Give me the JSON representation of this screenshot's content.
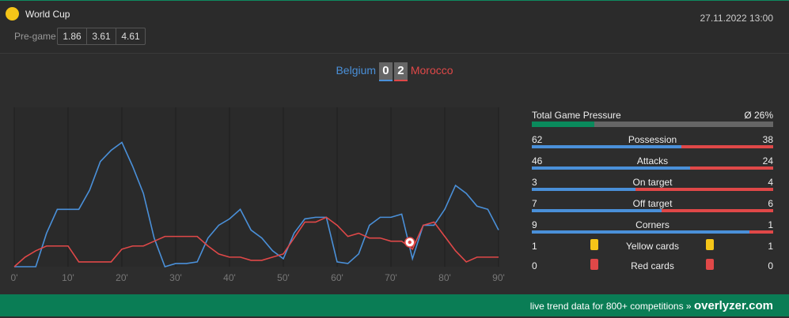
{
  "header": {
    "competition": "World Cup",
    "pregame_label": "Pre-game",
    "odds": [
      1.86,
      3.61,
      4.61
    ],
    "datetime": "27.11.2022 13:00"
  },
  "score": {
    "home": "Belgium",
    "home_goals": 0,
    "away_goals": 2,
    "away": "Morocco"
  },
  "chart_data": {
    "type": "line",
    "x": [
      0,
      2,
      4,
      6,
      8,
      10,
      12,
      14,
      16,
      18,
      20,
      22,
      24,
      26,
      28,
      30,
      32,
      34,
      36,
      38,
      40,
      42,
      44,
      46,
      48,
      50,
      52,
      54,
      56,
      58,
      60,
      62,
      64,
      66,
      68,
      70,
      72,
      74,
      76,
      78,
      80,
      82,
      84,
      86,
      88,
      90
    ],
    "series": [
      {
        "name": "Belgium",
        "color": "#4a90d9",
        "values": [
          0,
          0,
          0,
          21,
          36,
          36,
          36,
          48,
          66,
          73,
          78,
          63,
          46,
          18,
          0,
          2,
          2,
          3,
          18,
          26,
          30,
          36,
          23,
          18,
          10,
          5,
          21,
          30,
          31,
          31,
          3,
          2,
          8,
          26,
          31,
          31,
          33,
          5,
          26,
          26,
          36,
          51,
          46,
          38,
          36,
          23
        ]
      },
      {
        "name": "Morocco",
        "color": "#e04848",
        "values": [
          0,
          6,
          10,
          13,
          13,
          13,
          3,
          3,
          3,
          3,
          11,
          13,
          13,
          16,
          19,
          19,
          19,
          19,
          13,
          8,
          6,
          6,
          4,
          4,
          6,
          8,
          18,
          28,
          28,
          31,
          26,
          19,
          21,
          18,
          18,
          16,
          16,
          11,
          26,
          28,
          19,
          10,
          3,
          6,
          6,
          6
        ]
      }
    ],
    "goals": [
      73.5
    ],
    "xlim": [
      0,
      90
    ],
    "ylim": [
      0,
      100
    ],
    "xticks": [
      {
        "value": 0,
        "label": "0'"
      },
      {
        "value": 10,
        "label": "10'"
      },
      {
        "value": 20,
        "label": "20'"
      },
      {
        "value": 30,
        "label": "30'"
      },
      {
        "value": 40,
        "label": "40'"
      },
      {
        "value": 50,
        "label": "50'"
      },
      {
        "value": 60,
        "label": "60'"
      },
      {
        "value": 70,
        "label": "70'"
      },
      {
        "value": 80,
        "label": "80'"
      },
      {
        "value": 90,
        "label": "90'"
      }
    ],
    "grid": true
  },
  "pressure": {
    "label": "Total Game Pressure",
    "value": {
      "value": 26,
      "label": "Ø 26%"
    }
  },
  "stats": [
    {
      "home": 62,
      "name": "Possession",
      "away": 38
    },
    {
      "home": 46,
      "name": "Attacks",
      "away": 24
    },
    {
      "home": 3,
      "name": "On target",
      "away": 4
    },
    {
      "home": 7,
      "name": "Off target",
      "away": 6
    },
    {
      "home": 9,
      "name": "Corners",
      "away": 1
    }
  ],
  "cards": [
    {
      "home": 1,
      "name": "Yellow cards",
      "away": 1,
      "color": "#f5c518"
    },
    {
      "home": 0,
      "name": "Red cards",
      "away": 0,
      "color": "#e04848"
    }
  ],
  "footer": {
    "text": "live trend data for 800+ competitions »",
    "brand": "overlyzer.com"
  }
}
